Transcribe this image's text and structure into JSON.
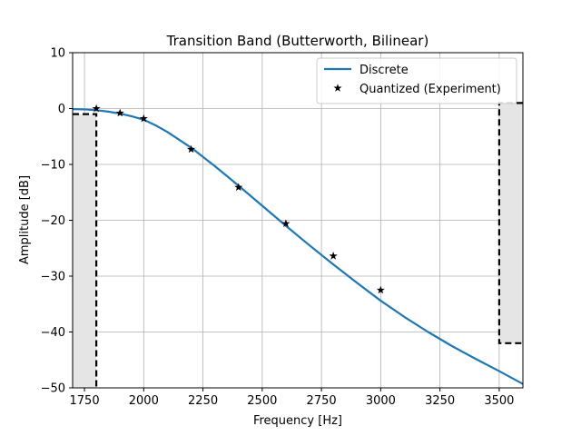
{
  "chart_data": {
    "type": "line",
    "title": "Transition Band (Butterworth, Bilinear)",
    "xlabel": "Frequency [Hz]",
    "ylabel": "Amplitude [dB]",
    "xlim": [
      1700,
      3600
    ],
    "ylim": [
      -50,
      10
    ],
    "xticks": [
      1750,
      2000,
      2250,
      2500,
      2750,
      3000,
      3250,
      3500
    ],
    "yticks": [
      -50,
      -40,
      -30,
      -20,
      -10,
      0,
      10
    ],
    "grid": true,
    "legend_position": "top-right",
    "series": [
      {
        "name": "Discrete",
        "style": "line",
        "color": "#1f77b4",
        "x": [
          1700,
          1750,
          1800,
          1850,
          1900,
          1950,
          2000,
          2050,
          2100,
          2150,
          2200,
          2300,
          2400,
          2500,
          2600,
          2700,
          2800,
          2900,
          3000,
          3100,
          3200,
          3300,
          3400,
          3500,
          3600
        ],
        "y": [
          -0.1,
          -0.15,
          -0.3,
          -0.55,
          -0.9,
          -1.4,
          -2.0,
          -3.0,
          -4.2,
          -5.6,
          -7.0,
          -10.3,
          -13.8,
          -17.4,
          -21.0,
          -24.5,
          -27.9,
          -31.2,
          -34.4,
          -37.3,
          -40.0,
          -42.5,
          -44.8,
          -47.0,
          -49.3
        ]
      },
      {
        "name": "Quantized (Experiment)",
        "style": "star-marker",
        "color": "#000000",
        "x": [
          1800,
          1900,
          2000,
          2200,
          2400,
          2600,
          2800,
          3000
        ],
        "y": [
          0.0,
          -0.8,
          -1.8,
          -7.3,
          -14.1,
          -20.6,
          -26.4,
          -32.5
        ]
      }
    ],
    "passband_spec": {
      "freq_edge": 1800,
      "max_db": 0,
      "min_db": -1
    },
    "stopband_spec": {
      "freq_edge": 3500,
      "upper_db": 1,
      "lower_db": -42
    },
    "colors": {
      "spec_fill": "#e5e5e5",
      "spec_line": "#000000",
      "grid": "#b0b0b0"
    }
  }
}
